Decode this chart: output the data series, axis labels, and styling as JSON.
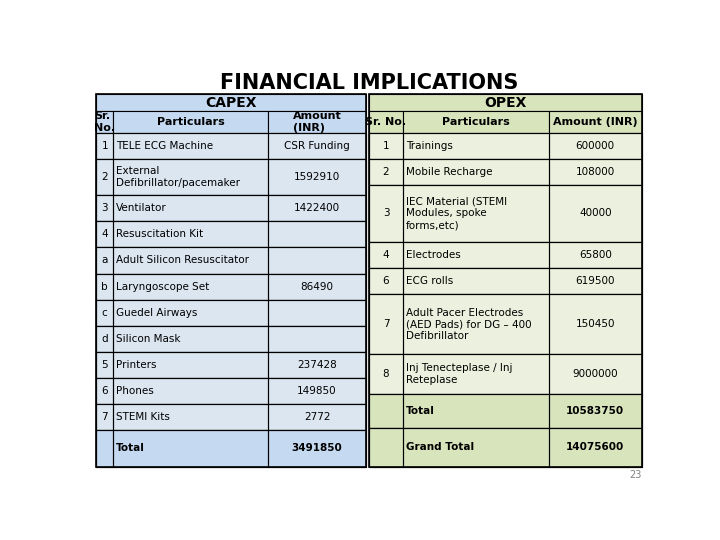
{
  "title": "FINANCIAL IMPLICATIONS",
  "capex_header": "CAPEX",
  "opex_header": "OPEX",
  "capex_col_headers": [
    "Sr.\nNo.",
    "Particulars",
    "Amount\n(INR)"
  ],
  "opex_col_headers": [
    "Sr. No.",
    "Particulars",
    "Amount (INR)"
  ],
  "capex_rows": [
    [
      "1",
      "TELE ECG Machine",
      "CSR Funding"
    ],
    [
      "2",
      "External\nDefibrillator/pacemaker",
      "1592910"
    ],
    [
      "3",
      "Ventilator",
      "1422400"
    ],
    [
      "4",
      "Resuscitation Kit",
      ""
    ],
    [
      "a",
      "Adult Silicon Resuscitator",
      ""
    ],
    [
      "b",
      "Laryngoscope Set",
      "86490"
    ],
    [
      "c",
      "Guedel Airways",
      ""
    ],
    [
      "d",
      "Silicon Mask",
      ""
    ],
    [
      "5",
      "Printers",
      "237428"
    ],
    [
      "6",
      "Phones",
      "149850"
    ],
    [
      "7",
      "STEMI Kits",
      "2772"
    ],
    [
      "",
      "Total",
      "3491850"
    ]
  ],
  "opex_rows": [
    [
      "1",
      "Trainings",
      "600000"
    ],
    [
      "2",
      "Mobile Recharge",
      "108000"
    ],
    [
      "3",
      "IEC Material (STEMI\nModules, spoke\nforms,etc)",
      "40000"
    ],
    [
      "4",
      "Electrodes",
      "65800"
    ],
    [
      "6",
      "ECG rolls",
      "619500"
    ],
    [
      "7",
      "Adult Pacer Electrodes\n(AED Pads) for DG – 400\nDefibrillator",
      "150450"
    ],
    [
      "8",
      "Inj Tenecteplase / Inj\nReteplase",
      "9000000"
    ],
    [
      "",
      "Total",
      "10583750"
    ],
    [
      "",
      "Grand Total",
      "14075600"
    ]
  ],
  "bg_color": "#ffffff",
  "capex_header_color": "#c5d9f1",
  "opex_header_color": "#d8e4bc",
  "capex_row_color": "#dce6f1",
  "opex_row_color": "#ebf1de",
  "total_row_color_capex": "#c5d9f1",
  "total_row_color_opex": "#d8e4bc",
  "page_num": "23",
  "title_fontsize": 15,
  "header_fontsize": 10,
  "col_header_fontsize": 8,
  "cell_fontsize": 7.5
}
